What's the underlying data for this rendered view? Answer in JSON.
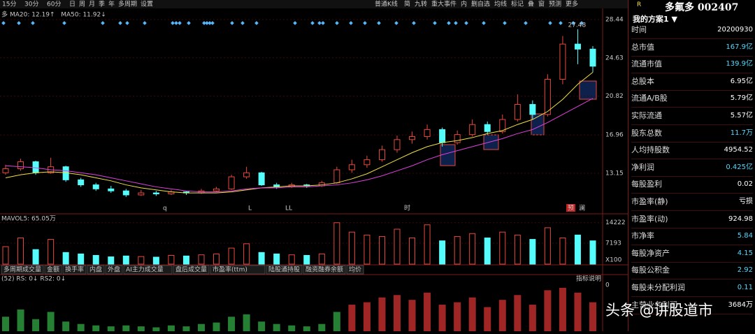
{
  "toolbar": {
    "left": [
      "15分",
      "30分",
      "60分",
      "日",
      "周",
      "月",
      "季",
      "年",
      "多周期",
      "设置"
    ],
    "right": [
      "普通K线",
      "简",
      "九转",
      "重大事件",
      "内",
      "删自选",
      "均线",
      "标记",
      "叠",
      "窗",
      "预测",
      "更多"
    ]
  },
  "chart_data": [
    {
      "type": "candlestick",
      "prefix": "多",
      "legend": [
        {
          "text": "MA20: 12.19↑",
          "color": "#f0e040"
        },
        {
          "text": "MA50: 11.92↓",
          "color": "#e040e0"
        }
      ],
      "up_color": "#e8483b",
      "down_color": "#54fcfc",
      "candles": [
        [
          13.2,
          14.0,
          13.0,
          13.6
        ],
        [
          13.6,
          14.6,
          13.4,
          14.3
        ],
        [
          14.3,
          14.4,
          13.0,
          13.2
        ],
        [
          13.2,
          14.7,
          13.1,
          13.8
        ],
        [
          13.8,
          13.9,
          12.3,
          12.5
        ],
        [
          12.5,
          12.7,
          11.8,
          12.0
        ],
        [
          12.0,
          12.2,
          11.4,
          11.6
        ],
        [
          11.6,
          11.9,
          11.2,
          11.4
        ],
        [
          11.4,
          11.6,
          10.8,
          11.0
        ],
        [
          11.0,
          11.5,
          10.9,
          11.2
        ],
        [
          11.2,
          11.4,
          10.9,
          11.1
        ],
        [
          11.1,
          11.5,
          11.0,
          11.3
        ],
        [
          11.3,
          11.4,
          11.0,
          11.2
        ],
        [
          11.2,
          11.6,
          11.1,
          11.4
        ],
        [
          11.4,
          11.8,
          11.3,
          11.6
        ],
        [
          11.6,
          13.0,
          11.5,
          12.8
        ],
        [
          12.8,
          13.8,
          12.6,
          13.2
        ],
        [
          13.2,
          13.3,
          11.9,
          12.0
        ],
        [
          12.0,
          12.2,
          11.6,
          11.8
        ],
        [
          11.8,
          12.2,
          11.7,
          12.0
        ],
        [
          12.0,
          12.1,
          11.7,
          11.9
        ],
        [
          11.9,
          12.4,
          11.8,
          12.2
        ],
        [
          12.2,
          13.8,
          12.1,
          13.5
        ],
        [
          13.5,
          14.5,
          13.2,
          14.0
        ],
        [
          14.0,
          14.9,
          13.7,
          14.5
        ],
        [
          14.5,
          15.9,
          14.3,
          15.5
        ],
        [
          15.5,
          16.9,
          15.2,
          16.5
        ],
        [
          16.5,
          17.3,
          16.1,
          16.8
        ],
        [
          16.8,
          18.0,
          16.5,
          17.5
        ],
        [
          17.5,
          17.7,
          15.8,
          16.2
        ],
        [
          16.2,
          17.4,
          16.0,
          17.0
        ],
        [
          17.0,
          18.5,
          16.8,
          18.0
        ],
        [
          18.0,
          18.3,
          17.0,
          17.3
        ],
        [
          17.3,
          19.0,
          17.1,
          18.5
        ],
        [
          18.5,
          21.0,
          18.3,
          20.0
        ],
        [
          20.0,
          20.4,
          18.5,
          19.0
        ],
        [
          19.0,
          23.0,
          18.8,
          22.5
        ],
        [
          22.5,
          26.8,
          22.0,
          26.0
        ],
        [
          26.0,
          27.48,
          24.0,
          25.5
        ],
        [
          25.5,
          25.8,
          23.2,
          23.8
        ]
      ],
      "ma20": [
        12.7,
        13.0,
        13.2,
        13.3,
        13.2,
        13.0,
        12.7,
        12.4,
        12.0,
        11.7,
        11.5,
        11.3,
        11.2,
        11.2,
        11.2,
        11.3,
        11.5,
        11.7,
        11.8,
        11.9,
        11.9,
        12.0,
        12.2,
        12.6,
        13.1,
        13.8,
        14.5,
        15.2,
        15.8,
        16.2,
        16.4,
        16.7,
        17.1,
        17.4,
        18.0,
        18.5,
        19.3,
        20.5,
        22.0,
        23.2
      ],
      "ma50": [
        13.9,
        13.8,
        13.7,
        13.5,
        13.4,
        13.2,
        13.0,
        12.7,
        12.4,
        12.1,
        11.8,
        11.6,
        11.4,
        11.3,
        11.3,
        11.4,
        11.6,
        11.7,
        11.7,
        11.8,
        11.8,
        11.9,
        12.0,
        12.2,
        12.5,
        12.9,
        13.4,
        13.9,
        14.5,
        15.0,
        15.4,
        15.8,
        16.2,
        16.6,
        17.1,
        17.5,
        18.2,
        19.0,
        19.8,
        20.6
      ],
      "ylim": [
        9.19,
        29.55
      ],
      "yticks": [
        13.15,
        16.96,
        20.82,
        24.63,
        28.44
      ],
      "annotation": "27.48",
      "markers": [
        "q",
        "L",
        "LL",
        "时",
        "预",
        "澜"
      ]
    },
    {
      "type": "volume",
      "legend": "MAVOL5: 65.05万",
      "values": [
        6000,
        9000,
        5000,
        8500,
        4000,
        3500,
        3000,
        2500,
        2800,
        2600,
        2400,
        3000,
        2800,
        3200,
        3500,
        5500,
        7000,
        4000,
        3500,
        3200,
        3000,
        3500,
        14222,
        11000,
        10000,
        9500,
        12000,
        9000,
        13500,
        8000,
        9500,
        10500,
        9000,
        11000,
        10000,
        8500,
        12500,
        9000,
        10000,
        8000
      ],
      "ylim": [
        0,
        16799
      ],
      "yticks": [
        14222,
        7193
      ],
      "unit_label": "X100"
    },
    {
      "type": "indicator",
      "tabs": [
        "多周期成交量",
        "金额",
        "换手率",
        "内盘",
        "外盘",
        "AI主力成交量",
        "盘后成交量",
        "市盈率(ttm)",
        "陆股通持股",
        "融资融券余额",
        "均价"
      ],
      "legend": "(52) RS: 0↓ RS2: 0↓",
      "help": "指标说明",
      "top_label": "0",
      "values": [
        30,
        45,
        25,
        40,
        20,
        15,
        12,
        10,
        12,
        10,
        8,
        12,
        10,
        15,
        18,
        30,
        35,
        20,
        15,
        12,
        10,
        15,
        40,
        55,
        60,
        70,
        75,
        65,
        80,
        55,
        60,
        70,
        50,
        65,
        75,
        55,
        85,
        90,
        80,
        60
      ],
      "ylim": [
        0,
        100
      ]
    }
  ],
  "panel": {
    "badge": "R",
    "stock": "多氟多 002407",
    "scheme": "我的方案1 ▼",
    "rows": [
      {
        "label": "时间",
        "value": "20200930",
        "color": "#ffffff"
      },
      {
        "label": "总市值",
        "value": "167.9亿",
        "color": "#54d8fc"
      },
      {
        "label": "流通市值",
        "value": "139.9亿",
        "color": "#54d8fc"
      },
      {
        "label": "总股本",
        "value": "6.95亿",
        "color": "#ffffff"
      },
      {
        "label": "流通A/B股",
        "value": "5.79亿",
        "color": "#ffffff"
      },
      {
        "label": "实际流通",
        "value": "5.57亿",
        "color": "#ffffff"
      },
      {
        "label": "股东总数",
        "value": "11.7万",
        "color": "#54d8fc"
      },
      {
        "label": "人均持股数",
        "value": "4954.52",
        "color": "#ffffff"
      },
      {
        "label": "净利润",
        "value": "0.425亿",
        "color": "#54d8fc"
      },
      {
        "label": "每股盈利",
        "value": "0.02",
        "color": "#ffffff"
      },
      {
        "label": "市盈率(静)",
        "value": "亏损",
        "color": "#ffffff"
      },
      {
        "label": "市盈率(动)",
        "value": "924.98",
        "color": "#ffffff"
      },
      {
        "label": "市净率",
        "value": "5.84",
        "color": "#54d8fc"
      },
      {
        "label": "每股净资产",
        "value": "4.15",
        "color": "#54d8fc"
      },
      {
        "label": "每股公积金",
        "value": "2.92",
        "color": "#54d8fc"
      },
      {
        "label": "每股未分配利润",
        "value": "0.11",
        "color": "#54d8fc"
      },
      {
        "label": "主营业务利润",
        "value": "3684万",
        "color": "#ffffff"
      }
    ]
  },
  "watermark": "头条 @讲股道市"
}
